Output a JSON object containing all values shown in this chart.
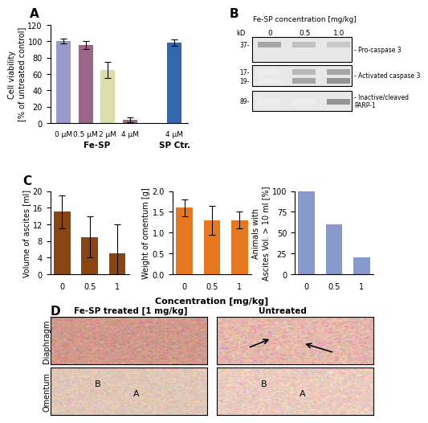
{
  "panel_A": {
    "categories": [
      "0 μM",
      "0.5 μM",
      "2 μM",
      "4 μM",
      "4 μM"
    ],
    "values": [
      100,
      95,
      65,
      4,
      98
    ],
    "errors": [
      3,
      5,
      10,
      3,
      4
    ],
    "colors": [
      "#9999cc",
      "#996688",
      "#ddddaa",
      "#996688",
      "#3366aa"
    ],
    "ylabel": "Cell viability\n[% of untreated control]",
    "ylim": [
      0,
      120
    ],
    "yticks": [
      0,
      20,
      40,
      60,
      80,
      100,
      120
    ],
    "xlabel_groups": [
      "Fe-SP",
      "SP Ctr."
    ],
    "label_A": "A"
  },
  "panel_B": {
    "title": "Fe-SP concentration [mg/kg]",
    "col_labels": [
      "0",
      "0.5",
      "1.0"
    ],
    "row_labels": [
      "37-",
      "17-",
      "19-",
      "89-"
    ],
    "band_labels": [
      "Pro-caspase 3",
      "Activated caspase 3",
      "Inactive/cleaved\nPARP-1"
    ],
    "label_B": "B"
  },
  "panel_C": {
    "ascites_values": [
      15,
      9,
      5
    ],
    "ascites_errors": [
      4,
      5,
      7
    ],
    "ascites_ylabel": "Volume of ascites [ml]",
    "ascites_ylim": [
      0,
      20
    ],
    "ascites_yticks": [
      0,
      4,
      8,
      12,
      16,
      20
    ],
    "omentum_values": [
      1.6,
      1.3,
      1.3
    ],
    "omentum_errors": [
      0.2,
      0.35,
      0.2
    ],
    "omentum_ylabel": "Weight of omentum [g]",
    "omentum_ylim": [
      0,
      2.0
    ],
    "omentum_yticks": [
      0,
      0.5,
      1.0,
      1.5,
      2.0
    ],
    "animals_values": [
      100,
      60,
      20
    ],
    "animals_ylabel": "Animals with\nAscites Vol. > 10 ml [%]",
    "animals_ylim": [
      0,
      100
    ],
    "animals_yticks": [
      0,
      25,
      50,
      75,
      100
    ],
    "x_ticks": [
      "0",
      "0.5",
      "1"
    ],
    "xlabel": "Concentration [mg/kg]",
    "bar_color_dark": "#8B4513",
    "bar_color_orange": "#E87820",
    "bar_color_blue": "#8899cc",
    "label_C": "C"
  },
  "panel_D": {
    "row_labels": [
      "Diaphragm",
      "Omentum"
    ],
    "col_labels": [
      "Fe-SP treated [1 mg/kg]",
      "Untreated"
    ],
    "label_D": "D",
    "bg_color": "#f0e0d0"
  },
  "figure": {
    "bg_color": "#ffffff",
    "label_fontsize": 11,
    "tick_fontsize": 7,
    "axis_label_fontsize": 8
  }
}
